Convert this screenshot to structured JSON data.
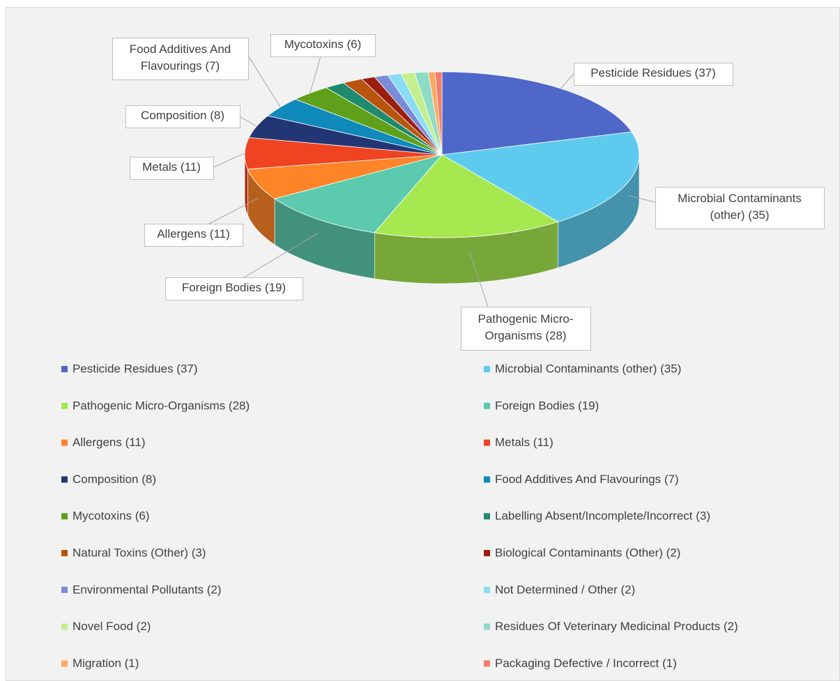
{
  "chart_data": {
    "type": "pie",
    "categories": [
      "Pesticide Residues (37)",
      "Microbial Contaminants (other) (35)",
      "Pathogenic Micro-Organisms (28)",
      "Foreign Bodies (19)",
      "Allergens (11)",
      "Metals (11)",
      "Composition (8)",
      "Food Additives And Flavourings (7)",
      "Mycotoxins (6)",
      "Labelling Absent/Incomplete/Incorrect (3)",
      "Natural Toxins (Other) (3)",
      "Biological Contaminants (Other) (2)",
      "Environmental Pollutants (2)",
      "Not Determined / Other (2)",
      "Novel Food (2)",
      "Residues Of Veterinary Medicinal Products (2)",
      "Migration (1)",
      "Packaging Defective / Incorrect (1)"
    ],
    "values": [
      37,
      35,
      28,
      19,
      11,
      11,
      8,
      7,
      6,
      3,
      3,
      2,
      2,
      2,
      2,
      2,
      1,
      1
    ],
    "colors": [
      "#4e67c8",
      "#5ecbee",
      "#a5e84f",
      "#5bcaae",
      "#fe8427",
      "#ef4322",
      "#223676",
      "#0f8aba",
      "#5ea01a",
      "#1f8a6d",
      "#b8540e",
      "#9b1f0f",
      "#7a8cd8",
      "#89dcf4",
      "#c3ef8f",
      "#8edbc7",
      "#fea964",
      "#f47d6b"
    ],
    "data_labels": [
      "Pesticide Residues (37)",
      "Microbial Contaminants\n(other) (35)",
      "Pathogenic Micro-\nOrganisms (28)",
      "Foreign Bodies (19)",
      "Allergens (11)",
      "Metals (11)",
      "Composition (8)",
      "Food Additives And\nFlavourings (7)",
      "Mycotoxins (6)",
      null,
      null,
      null,
      null,
      null,
      null,
      null,
      null,
      null
    ],
    "legend": "bottom"
  }
}
